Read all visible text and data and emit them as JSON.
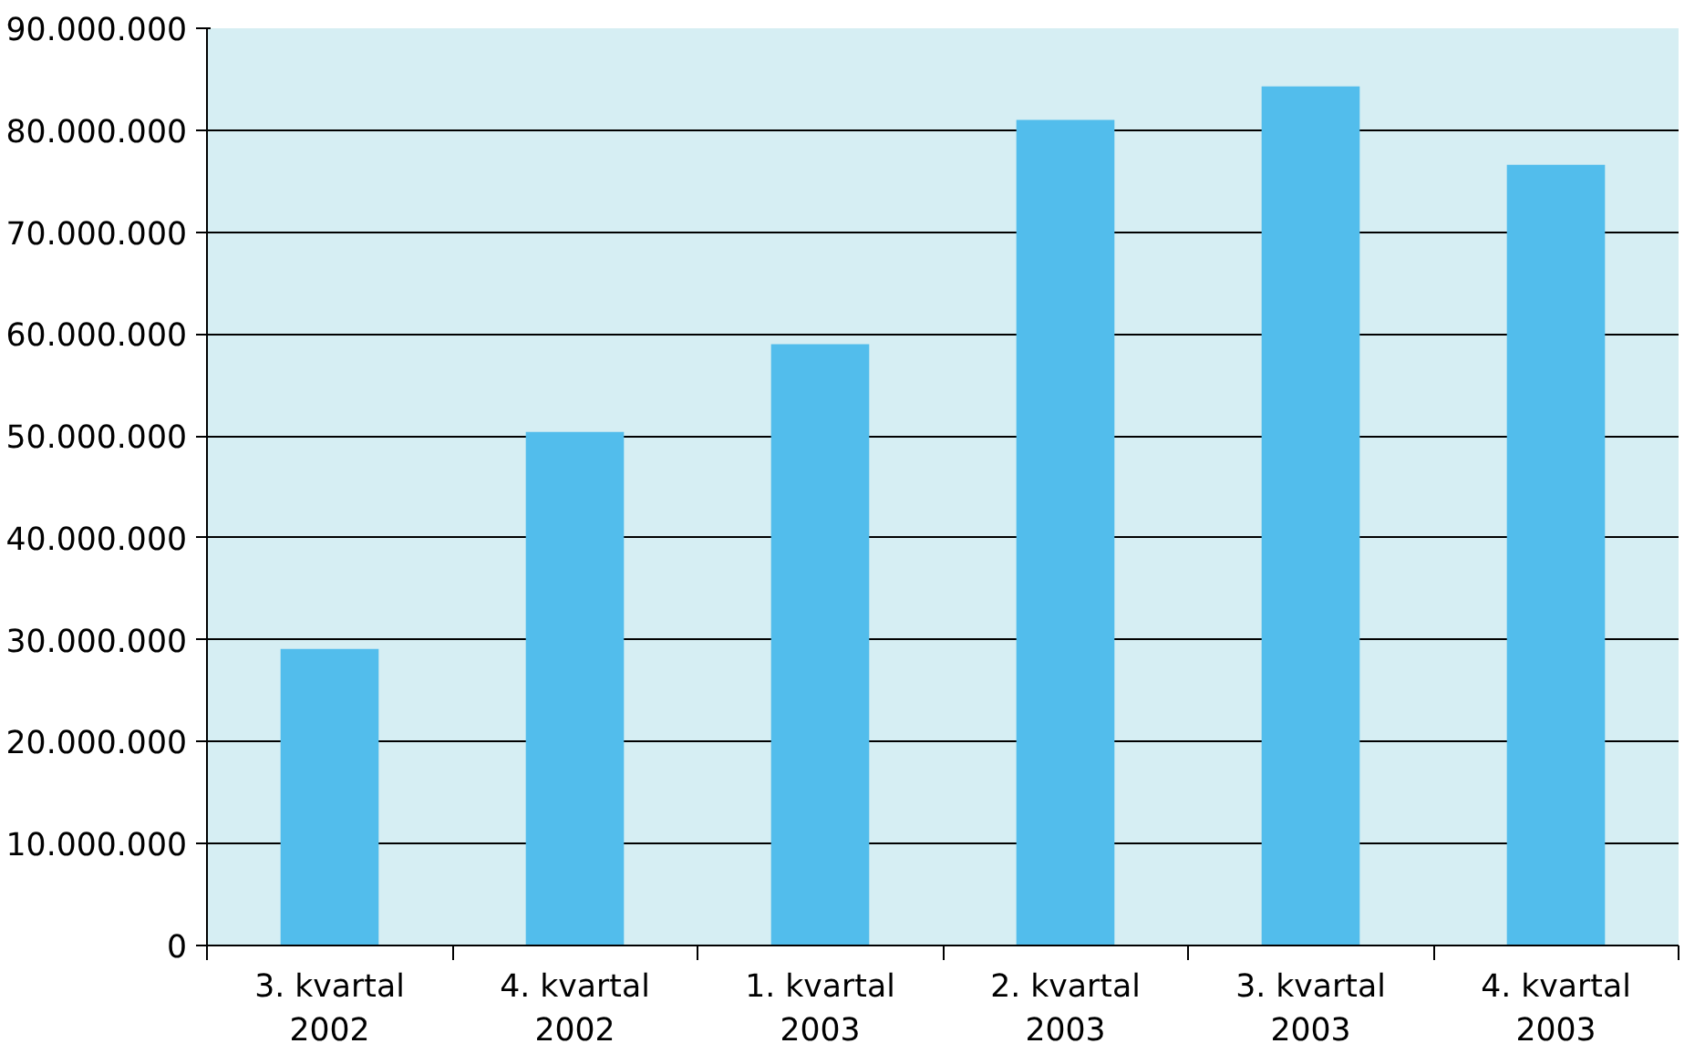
{
  "chart_data": {
    "type": "bar",
    "categories": [
      "3. kvartal\n2002",
      "4. kvartal\n2002",
      "1. kvartal\n2003",
      "2. kvartal\n2003",
      "3. kvartal\n2003",
      "4. kvartal\n2003"
    ],
    "values": [
      29100000,
      50400000,
      59000000,
      81000000,
      84300000,
      76600000
    ],
    "color": "#52bdec",
    "ylim": [
      0,
      90000000
    ],
    "yticks": [
      {
        "value": 0,
        "label": "0"
      },
      {
        "value": 10000000,
        "label": "10.000.000"
      },
      {
        "value": 20000000,
        "label": "20.000.000"
      },
      {
        "value": 30000000,
        "label": "30.000.000"
      },
      {
        "value": 40000000,
        "label": "40.000.000"
      },
      {
        "value": 50000000,
        "label": "50.000.000"
      },
      {
        "value": 60000000,
        "label": "60.000.000"
      },
      {
        "value": 70000000,
        "label": "70.000.000"
      },
      {
        "value": 80000000,
        "label": "80.000.000"
      },
      {
        "value": 90000000,
        "label": "90.000.000"
      }
    ],
    "grid": "y"
  }
}
